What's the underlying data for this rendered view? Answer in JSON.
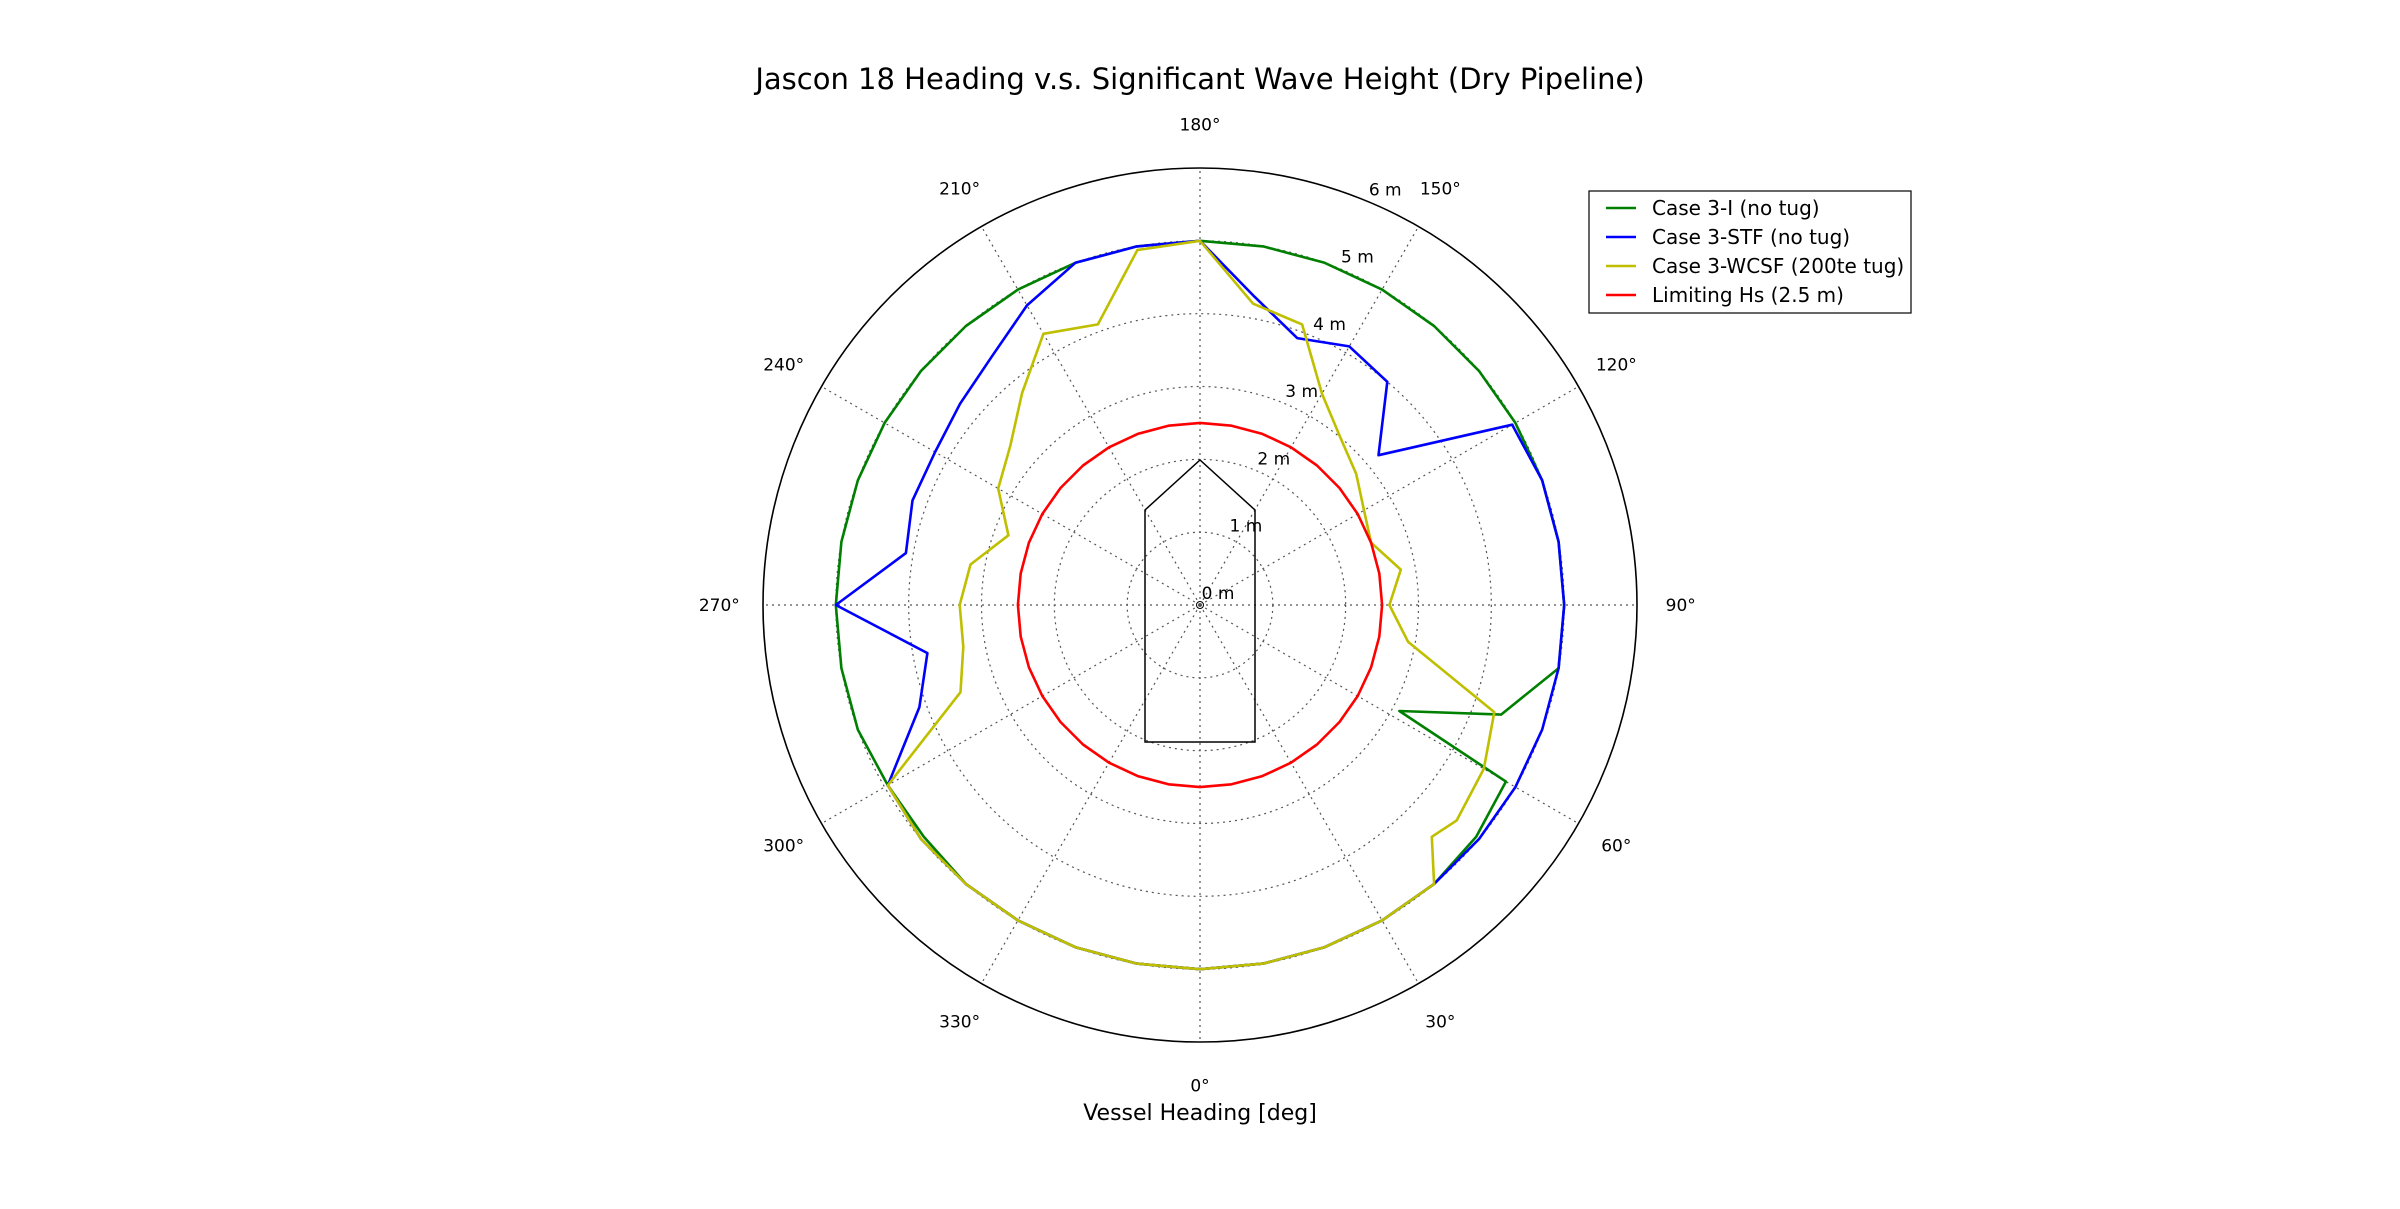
{
  "chart_data": {
    "type": "line",
    "projection": "polar",
    "title": "Jascon 18 Heading v.s. Significant Wave Height (Dry Pipeline)",
    "xlabel": "Vessel Heading [deg]",
    "theta_zero_location": "bottom",
    "theta_direction": "counterclockwise",
    "angle_ticks": [
      {
        "deg": 0,
        "label": "0°"
      },
      {
        "deg": 30,
        "label": "30°"
      },
      {
        "deg": 60,
        "label": "60°"
      },
      {
        "deg": 90,
        "label": "90°"
      },
      {
        "deg": 120,
        "label": "120°"
      },
      {
        "deg": 150,
        "label": "150°"
      },
      {
        "deg": 180,
        "label": "180°"
      },
      {
        "deg": 210,
        "label": "210°"
      },
      {
        "deg": 240,
        "label": "240°"
      },
      {
        "deg": 270,
        "label": "270°"
      },
      {
        "deg": 300,
        "label": "300°"
      },
      {
        "deg": 330,
        "label": "330°"
      }
    ],
    "radial_ticks": [
      {
        "r": 0,
        "label": "0 m"
      },
      {
        "r": 1,
        "label": "1 m"
      },
      {
        "r": 2,
        "label": "2 m"
      },
      {
        "r": 3,
        "label": "3 m"
      },
      {
        "r": 4,
        "label": "4 m"
      },
      {
        "r": 5,
        "label": "5 m"
      },
      {
        "r": 6,
        "label": "6 m"
      }
    ],
    "rlim": [
      0,
      6
    ],
    "grid": true,
    "legend_position": "top-right",
    "series": [
      {
        "name": "Case 3-I (no tug)",
        "color": "#008000",
        "theta": [
          0,
          10,
          20,
          30,
          40,
          50,
          60,
          62,
          70,
          80,
          90,
          100,
          110,
          120,
          130,
          140,
          150,
          160,
          170,
          180,
          190,
          200,
          210,
          220,
          230,
          240,
          250,
          260,
          270,
          280,
          290,
          300,
          310,
          320,
          330,
          340,
          350,
          360
        ],
        "r": [
          5.0,
          5.0,
          5.0,
          5.0,
          5.0,
          4.95,
          4.85,
          3.1,
          4.4,
          5.0,
          5.0,
          5.0,
          5.0,
          5.0,
          5.0,
          5.0,
          5.0,
          5.0,
          5.0,
          5.0,
          5.0,
          5.0,
          5.0,
          5.0,
          5.0,
          5.0,
          5.0,
          5.0,
          5.0,
          5.0,
          5.0,
          4.95,
          4.95,
          5.0,
          5.0,
          5.0,
          5.0,
          5.0
        ]
      },
      {
        "name": "Case 3-STF (no tug)",
        "color": "#0000ff",
        "theta": [
          0,
          10,
          20,
          30,
          40,
          50,
          60,
          70,
          80,
          90,
          100,
          110,
          120,
          130,
          140,
          150,
          160,
          170,
          180,
          190,
          200,
          210,
          220,
          230,
          240,
          250,
          260,
          270,
          280,
          290,
          300,
          310,
          320,
          330,
          340,
          350,
          360
        ],
        "r": [
          5.0,
          5.0,
          5.0,
          5.0,
          5.0,
          5.0,
          5.0,
          5.0,
          5.0,
          5.0,
          5.0,
          5.0,
          4.95,
          3.2,
          4.0,
          4.1,
          3.9,
          4.3,
          5.0,
          5.0,
          5.0,
          4.75,
          4.45,
          4.3,
          4.2,
          4.2,
          4.1,
          5.0,
          3.8,
          4.1,
          4.95,
          5.0,
          5.0,
          5.0,
          5.0,
          5.0,
          5.0
        ]
      },
      {
        "name": "Case 3-WCSF (200te tug)",
        "color": "#bfbf00",
        "theta": [
          0,
          10,
          20,
          30,
          40,
          45,
          50,
          60,
          70,
          80,
          90,
          100,
          110,
          120,
          130,
          140,
          150,
          160,
          170,
          180,
          190,
          200,
          210,
          220,
          230,
          240,
          250,
          260,
          270,
          280,
          290,
          300,
          310,
          320,
          330,
          340,
          350,
          360
        ],
        "r": [
          5.0,
          5.0,
          5.0,
          5.0,
          5.0,
          4.5,
          4.6,
          4.5,
          4.3,
          2.9,
          2.6,
          2.8,
          2.5,
          2.6,
          2.8,
          3.0,
          3.35,
          4.1,
          4.2,
          5.0,
          4.95,
          4.1,
          4.3,
          3.8,
          3.4,
          3.2,
          2.8,
          3.2,
          3.3,
          3.3,
          3.5,
          4.95,
          5.0,
          5.0,
          5.0,
          5.0,
          5.0,
          5.0
        ]
      },
      {
        "name": "Limiting Hs (2.5 m)",
        "color": "#ff0000",
        "theta": [
          0,
          90,
          180,
          270,
          360
        ],
        "r": [
          2.5,
          2.5,
          2.5,
          2.5,
          2.5
        ]
      }
    ]
  }
}
